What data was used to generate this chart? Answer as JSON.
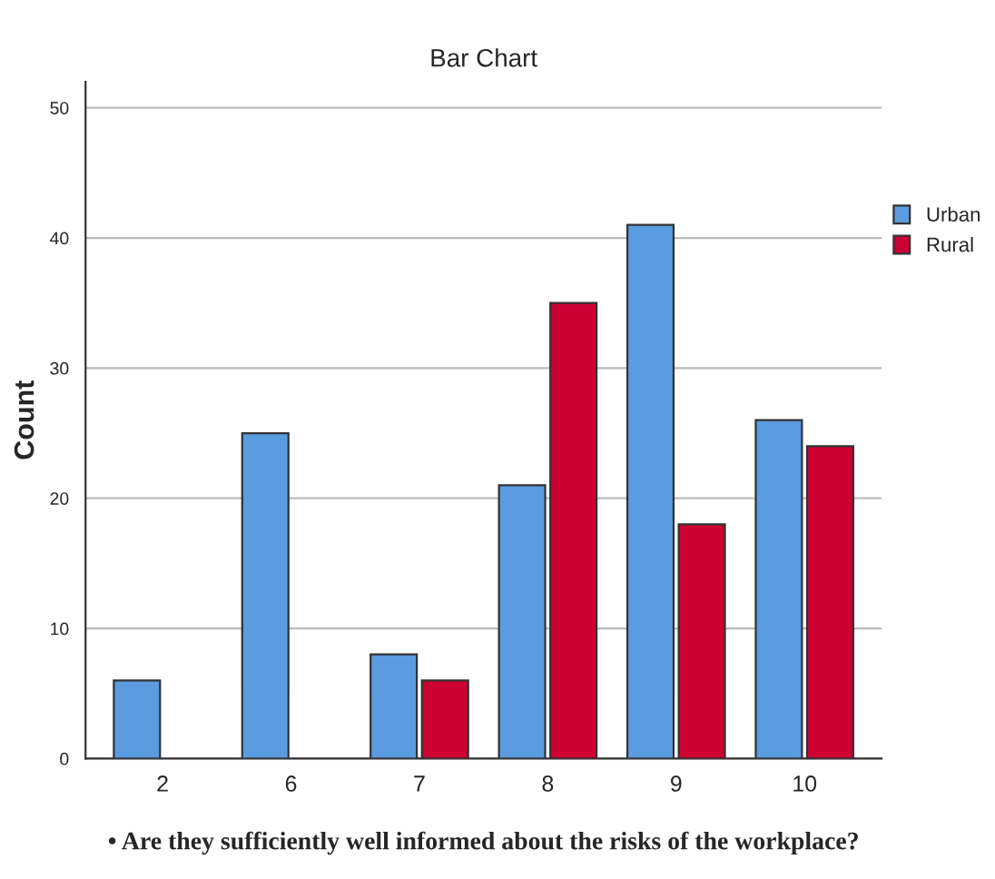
{
  "chart_data": {
    "type": "bar",
    "title": "Bar Chart",
    "xlabel": "• Are they sufficiently well informed about the risks of the workplace?",
    "ylabel": "Count",
    "categories": [
      "2",
      "6",
      "7",
      "8",
      "9",
      "10"
    ],
    "series": [
      {
        "name": "Urban",
        "color": "#5b9be0",
        "values": [
          6,
          25,
          8,
          21,
          41,
          26
        ]
      },
      {
        "name": "Rural",
        "color": "#cc0033",
        "values": [
          null,
          null,
          6,
          35,
          18,
          24
        ]
      }
    ],
    "ylim": [
      0,
      52
    ],
    "yticks": [
      0,
      10,
      20,
      30,
      40,
      50
    ],
    "grid": "y",
    "legend": "right"
  }
}
